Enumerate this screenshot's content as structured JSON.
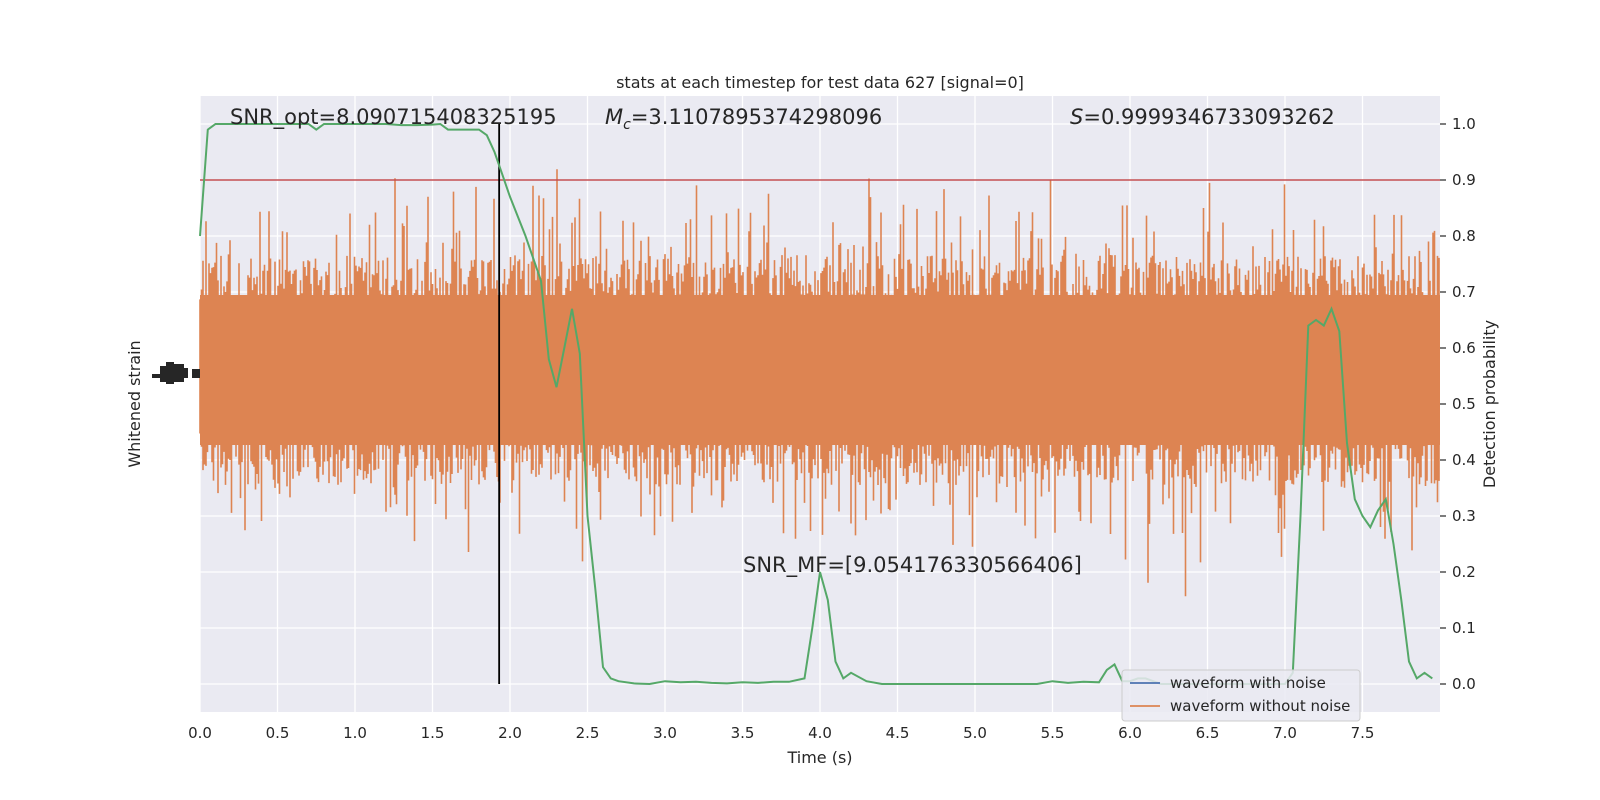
{
  "chart_data": {
    "type": "line",
    "title": "stats at each timestep for test data 627 [signal=0]",
    "xlabel": "Time (s)",
    "ylabel_left": "Whitened strain",
    "ylabel_right": "Detection probability",
    "xlim": [
      0.0,
      8.0
    ],
    "ylim_right": [
      -0.05,
      1.05
    ],
    "x_ticks": [
      "0.0",
      "0.5",
      "1.0",
      "1.5",
      "2.0",
      "2.5",
      "3.0",
      "3.5",
      "4.0",
      "4.5",
      "5.0",
      "5.5",
      "6.0",
      "6.5",
      "7.0",
      "7.5"
    ],
    "x_tick_values": [
      0.0,
      0.5,
      1.0,
      1.5,
      2.0,
      2.5,
      3.0,
      3.5,
      4.0,
      4.5,
      5.0,
      5.5,
      6.0,
      6.5,
      7.0,
      7.5
    ],
    "y_ticks_right": [
      "0.0",
      "0.1",
      "0.2",
      "0.3",
      "0.4",
      "0.5",
      "0.6",
      "0.7",
      "0.8",
      "0.9",
      "1.0"
    ],
    "y_tick_values_right": [
      0.0,
      0.1,
      0.2,
      0.3,
      0.4,
      0.5,
      0.6,
      0.7,
      0.8,
      0.9,
      1.0
    ],
    "grid": true,
    "legend_placement": "lower-right",
    "annotations": {
      "snr_opt": "SNR_opt=8.090715408325195",
      "mc_symbol": "M",
      "mc_sub": "c",
      "mc_value": "=3.1107895374298096",
      "s_symbol": "S",
      "s_value": "=0.9999346733093262",
      "snr_mf": "SNR_MF=[9.054176330566406]"
    },
    "threshold": 0.9,
    "marker_time": 1.93,
    "series": [
      {
        "name": "waveform with noise",
        "color": "#4c72b0"
      },
      {
        "name": "waveform without noise",
        "color": "#dd8452"
      }
    ],
    "probability": {
      "color": "#55a868",
      "x": [
        0.0,
        0.05,
        0.1,
        0.15,
        0.2,
        0.3,
        0.4,
        0.5,
        0.6,
        0.7,
        0.75,
        0.8,
        0.9,
        1.0,
        1.1,
        1.2,
        1.3,
        1.4,
        1.5,
        1.55,
        1.6,
        1.7,
        1.8,
        1.85,
        1.9,
        1.95,
        2.0,
        2.1,
        2.2,
        2.25,
        2.3,
        2.35,
        2.4,
        2.45,
        2.5,
        2.55,
        2.6,
        2.65,
        2.7,
        2.8,
        2.9,
        3.0,
        3.1,
        3.2,
        3.3,
        3.4,
        3.5,
        3.6,
        3.7,
        3.8,
        3.9,
        3.95,
        4.0,
        4.05,
        4.1,
        4.15,
        4.2,
        4.3,
        4.4,
        4.5,
        5.0,
        5.4,
        5.5,
        5.6,
        5.7,
        5.8,
        5.85,
        5.9,
        5.95,
        6.0,
        6.05,
        6.1,
        6.15,
        6.2,
        6.3,
        6.5,
        6.7,
        6.9,
        7.0,
        7.05,
        7.1,
        7.15,
        7.2,
        7.25,
        7.3,
        7.35,
        7.4,
        7.45,
        7.5,
        7.55,
        7.6,
        7.65,
        7.7,
        7.75,
        7.8,
        7.85,
        7.9,
        7.95
      ],
      "y": [
        0.8,
        0.99,
        1.0,
        1.0,
        1.0,
        1.0,
        1.0,
        1.0,
        1.0,
        1.0,
        0.99,
        1.0,
        1.0,
        1.0,
        1.0,
        1.0,
        0.998,
        0.998,
        0.999,
        1.0,
        0.99,
        0.99,
        0.99,
        0.98,
        0.95,
        0.91,
        0.87,
        0.8,
        0.72,
        0.58,
        0.53,
        0.6,
        0.67,
        0.59,
        0.3,
        0.17,
        0.03,
        0.01,
        0.005,
        0.001,
        0.0,
        0.005,
        0.003,
        0.004,
        0.002,
        0.001,
        0.003,
        0.002,
        0.004,
        0.004,
        0.01,
        0.1,
        0.2,
        0.15,
        0.04,
        0.01,
        0.02,
        0.005,
        0.0,
        0.0,
        0.0,
        0.0,
        0.005,
        0.002,
        0.004,
        0.003,
        0.025,
        0.035,
        0.005,
        0.005,
        0.01,
        0.01,
        0.005,
        0.0,
        0.0,
        0.0,
        0.0,
        0.0,
        0.0,
        0.02,
        0.3,
        0.64,
        0.65,
        0.64,
        0.67,
        0.63,
        0.43,
        0.33,
        0.3,
        0.28,
        0.31,
        0.33,
        0.25,
        0.15,
        0.04,
        0.01,
        0.02,
        0.01
      ]
    }
  }
}
